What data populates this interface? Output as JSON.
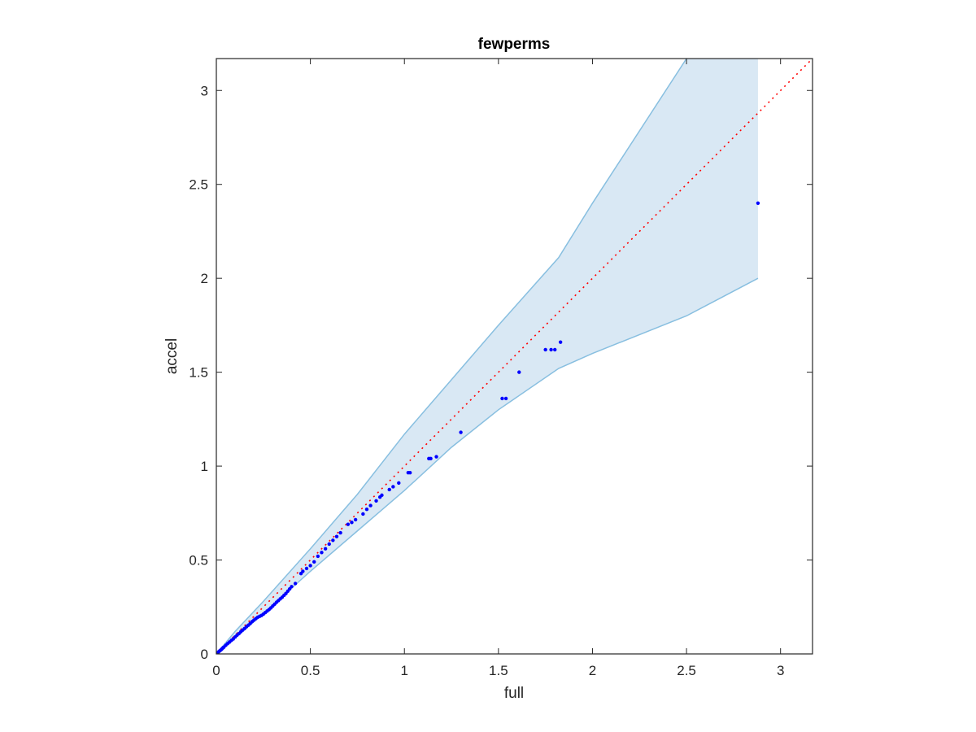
{
  "chart_data": {
    "type": "scatter",
    "title": "fewperms",
    "xlabel": "full",
    "ylabel": "accel",
    "xlim": [
      0,
      3.17
    ],
    "ylim": [
      0,
      3.17
    ],
    "xticks": [
      0,
      0.5,
      1,
      1.5,
      2,
      2.5,
      3
    ],
    "yticks": [
      0,
      0.5,
      1,
      1.5,
      2,
      2.5,
      3
    ],
    "xtick_labels": [
      "0",
      "0.5",
      "1",
      "1.5",
      "2",
      "2.5",
      "3"
    ],
    "ytick_labels": [
      "0",
      "0.5",
      "1",
      "1.5",
      "2",
      "2.5",
      "3"
    ],
    "grid": false,
    "colors": {
      "points": "#0000ff",
      "diagonal": "#ff0000",
      "band_fill": "#d9e8f4",
      "band_edge": "#88bfe0",
      "axes": "#262626"
    },
    "diagonal": {
      "from": [
        0,
        0
      ],
      "to": [
        3.17,
        3.17
      ],
      "style": "dotted"
    },
    "band": {
      "upper": [
        [
          0,
          0
        ],
        [
          0.1,
          0.12
        ],
        [
          0.25,
          0.28
        ],
        [
          0.5,
          0.56
        ],
        [
          0.75,
          0.85
        ],
        [
          1.0,
          1.17
        ],
        [
          1.25,
          1.46
        ],
        [
          1.5,
          1.75
        ],
        [
          1.82,
          2.11
        ],
        [
          2.0,
          2.4
        ],
        [
          2.5,
          3.17
        ]
      ],
      "lower": [
        [
          0,
          0
        ],
        [
          0.1,
          0.085
        ],
        [
          0.25,
          0.215
        ],
        [
          0.5,
          0.44
        ],
        [
          0.75,
          0.655
        ],
        [
          1.0,
          0.87
        ],
        [
          1.25,
          1.1
        ],
        [
          1.5,
          1.3
        ],
        [
          1.82,
          1.52
        ],
        [
          2.0,
          1.6
        ],
        [
          2.5,
          1.8
        ],
        [
          2.88,
          2.0
        ]
      ],
      "x_end": 2.88,
      "top_end": 3.17
    },
    "series": [
      {
        "points": [
          [
            0.0,
            0.0
          ],
          [
            0.005,
            0.004
          ],
          [
            0.01,
            0.009
          ],
          [
            0.015,
            0.014
          ],
          [
            0.02,
            0.018
          ],
          [
            0.025,
            0.022
          ],
          [
            0.03,
            0.027
          ],
          [
            0.035,
            0.032
          ],
          [
            0.04,
            0.036
          ],
          [
            0.05,
            0.046
          ],
          [
            0.06,
            0.055
          ],
          [
            0.07,
            0.063
          ],
          [
            0.08,
            0.072
          ],
          [
            0.09,
            0.08
          ],
          [
            0.1,
            0.09
          ],
          [
            0.11,
            0.1
          ],
          [
            0.12,
            0.108
          ],
          [
            0.13,
            0.118
          ],
          [
            0.14,
            0.127
          ],
          [
            0.15,
            0.135
          ],
          [
            0.16,
            0.145
          ],
          [
            0.17,
            0.153
          ],
          [
            0.18,
            0.162
          ],
          [
            0.19,
            0.172
          ],
          [
            0.2,
            0.18
          ],
          [
            0.21,
            0.188
          ],
          [
            0.22,
            0.195
          ],
          [
            0.23,
            0.2
          ],
          [
            0.24,
            0.205
          ],
          [
            0.25,
            0.212
          ],
          [
            0.26,
            0.22
          ],
          [
            0.27,
            0.228
          ],
          [
            0.28,
            0.236
          ],
          [
            0.29,
            0.245
          ],
          [
            0.3,
            0.255
          ],
          [
            0.31,
            0.265
          ],
          [
            0.32,
            0.275
          ],
          [
            0.33,
            0.284
          ],
          [
            0.34,
            0.293
          ],
          [
            0.35,
            0.302
          ],
          [
            0.36,
            0.312
          ],
          [
            0.37,
            0.322
          ],
          [
            0.38,
            0.334
          ],
          [
            0.39,
            0.346
          ],
          [
            0.4,
            0.358
          ],
          [
            0.42,
            0.375
          ],
          [
            0.45,
            0.428
          ],
          [
            0.46,
            0.44
          ],
          [
            0.48,
            0.455
          ],
          [
            0.5,
            0.47
          ],
          [
            0.52,
            0.49
          ],
          [
            0.54,
            0.52
          ],
          [
            0.56,
            0.54
          ],
          [
            0.58,
            0.56
          ],
          [
            0.6,
            0.585
          ],
          [
            0.62,
            0.605
          ],
          [
            0.64,
            0.625
          ],
          [
            0.66,
            0.645
          ],
          [
            0.7,
            0.69
          ],
          [
            0.72,
            0.7
          ],
          [
            0.74,
            0.715
          ],
          [
            0.78,
            0.745
          ],
          [
            0.8,
            0.77
          ],
          [
            0.82,
            0.79
          ],
          [
            0.85,
            0.815
          ],
          [
            0.87,
            0.835
          ],
          [
            0.88,
            0.845
          ],
          [
            0.92,
            0.875
          ],
          [
            0.94,
            0.89
          ],
          [
            0.97,
            0.91
          ],
          [
            1.02,
            0.965
          ],
          [
            1.03,
            0.965
          ],
          [
            1.13,
            1.04
          ],
          [
            1.14,
            1.04
          ],
          [
            1.17,
            1.05
          ],
          [
            1.3,
            1.18
          ],
          [
            1.52,
            1.36
          ],
          [
            1.54,
            1.36
          ],
          [
            1.61,
            1.5
          ],
          [
            1.75,
            1.62
          ],
          [
            1.78,
            1.62
          ],
          [
            1.8,
            1.62
          ],
          [
            1.83,
            1.66
          ],
          [
            2.88,
            2.4
          ]
        ]
      }
    ]
  }
}
